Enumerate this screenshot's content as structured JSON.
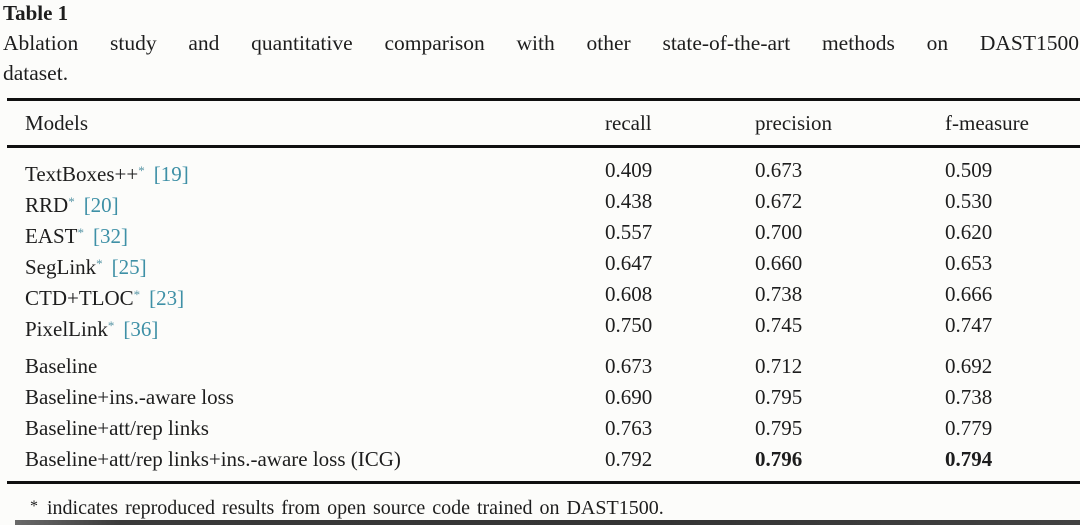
{
  "colors": {
    "background": "#fcfcfa",
    "text": "#1d1d1d",
    "citation_link": "#3e90a6",
    "rule": "#101010"
  },
  "table_label": "Table 1",
  "caption": {
    "line1": "Ablation study and quantitative comparison with other state-of-the-art methods on DAST1500",
    "line2": "dataset."
  },
  "columns": {
    "models": "Models",
    "recall": "recall",
    "precision": "precision",
    "fmeasure": "f-measure"
  },
  "rows": [
    {
      "model": "TextBoxes++",
      "star": "*",
      "cite": "[19]",
      "recall": "0.409",
      "precision": "0.673",
      "fmeasure": "0.509"
    },
    {
      "model": "RRD",
      "star": "*",
      "cite": "[20]",
      "recall": "0.438",
      "precision": "0.672",
      "fmeasure": "0.530"
    },
    {
      "model": "EAST",
      "star": "*",
      "cite": "[32]",
      "recall": "0.557",
      "precision": "0.700",
      "fmeasure": "0.620"
    },
    {
      "model": "SegLink",
      "star": "*",
      "cite": "[25]",
      "recall": "0.647",
      "precision": "0.660",
      "fmeasure": "0.653"
    },
    {
      "model": "CTD+TLOC",
      "star": "*",
      "cite": "[23]",
      "recall": "0.608",
      "precision": "0.738",
      "fmeasure": "0.666"
    },
    {
      "model": "PixelLink",
      "star": "*",
      "cite": "[36]",
      "recall": "0.750",
      "precision": "0.745",
      "fmeasure": "0.747"
    },
    {
      "model": "Baseline",
      "star": "",
      "cite": "",
      "recall": "0.673",
      "precision": "0.712",
      "fmeasure": "0.692"
    },
    {
      "model": "Baseline+ins.-aware loss",
      "star": "",
      "cite": "",
      "recall": "0.690",
      "precision": "0.795",
      "fmeasure": "0.738"
    },
    {
      "model": "Baseline+att/rep links",
      "star": "",
      "cite": "",
      "recall": "0.763",
      "precision": "0.795",
      "fmeasure": "0.779"
    },
    {
      "model": "Baseline+att/rep links+ins.-aware loss (ICG)",
      "star": "",
      "cite": "",
      "recall": "0.792",
      "precision": "0.796",
      "fmeasure": "0.794"
    }
  ],
  "footnote": {
    "marker": "*",
    "text": "indicates reproduced results from open source code trained on DAST1500."
  }
}
